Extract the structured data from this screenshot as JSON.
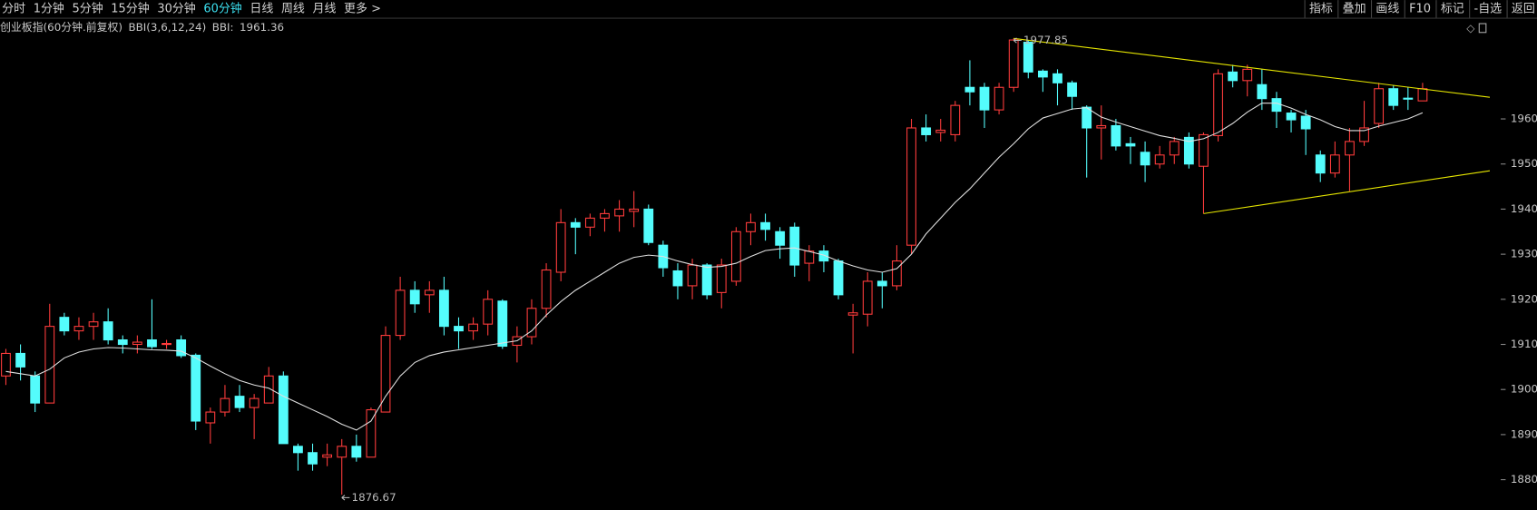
{
  "toolbar": {
    "periods": [
      "分时",
      "1分钟",
      "5分钟",
      "15分钟",
      "30分钟",
      "60分钟",
      "日线",
      "周线",
      "月线",
      "更多 >"
    ],
    "active": 5,
    "tools": [
      "指标",
      "叠加",
      "画线",
      "F10",
      "标记",
      "-自选",
      "返回"
    ]
  },
  "chart_data": {
    "type": "candlestick",
    "title": "创业板指(60分钟.前复权)",
    "indicator": "BBI(3,6,12,24)",
    "indicator_label": "BBI:",
    "open": [
      1903,
      1908,
      1903,
      1897,
      1916,
      1913,
      1914,
      1915,
      1911,
      1910,
      1911,
      1910,
      1911,
      1907.6,
      1892.6,
      1895,
      1898.5,
      1896,
      1897,
      1903,
      1887.4,
      1886,
      1885,
      1885,
      1887.4,
      1885,
      1895,
      1912,
      1922,
      1921,
      1922,
      1914,
      1913,
      1914.5,
      1919.6,
      1909.8,
      1911.7,
      1918,
      1926,
      1937,
      1936,
      1938,
      1938.5,
      1939.5,
      1940,
      1932,
      1926.3,
      1923,
      1927.6,
      1921.5,
      1924,
      1935,
      1937,
      1935,
      1936,
      1928,
      1930.7,
      1928.5,
      1916.5,
      1916.7,
      1924,
      1923,
      1932,
      1958,
      1957,
      1956.5,
      1967,
      1967,
      1962,
      1967,
      1977,
      1970.6,
      1970,
      1968,
      1962.6,
      1958,
      1958.5,
      1954.5,
      1952.6,
      1950,
      1952,
      1955.9,
      1949.5,
      1956.3,
      1970.4,
      1968.5,
      1967.6,
      1964.5,
      1961.3,
      1960.6,
      1952,
      1948,
      1952,
      1955,
      1959,
      1966.7,
      1964.6,
      1964
    ],
    "high": [
      1909,
      1910,
      1904,
      1919,
      1917,
      1916,
      1917,
      1918,
      1912,
      1912,
      1920,
      1911,
      1912,
      1908,
      1896,
      1901,
      1901,
      1899,
      1905,
      1904,
      1888,
      1888,
      1888,
      1889,
      1890,
      1896,
      1914,
      1925,
      1924,
      1924,
      1925,
      1916,
      1916,
      1922,
      1920,
      1914,
      1920,
      1928,
      1940,
      1938,
      1939,
      1940,
      1942,
      1944,
      1941,
      1933,
      1928,
      1929,
      1928,
      1929,
      1936,
      1939,
      1939,
      1936,
      1937,
      1932,
      1932,
      1929,
      1919,
      1926,
      1926,
      1932,
      1960,
      1961,
      1960,
      1964,
      1973,
      1968,
      1968,
      1977.85,
      1977.5,
      1971,
      1971,
      1968.5,
      1963,
      1963,
      1960,
      1956,
      1955,
      1954,
      1956,
      1957,
      1957,
      1971,
      1972,
      1972,
      1971,
      1966,
      1962,
      1962,
      1953,
      1955,
      1958,
      1964,
      1968,
      1967.5,
      1967,
      1968
    ],
    "low": [
      1901,
      1902,
      1895,
      1897,
      1912,
      1911,
      1911,
      1910,
      1908,
      1908,
      1909,
      1909,
      1907,
      1891,
      1888,
      1894,
      1895,
      1889,
      1897,
      1888,
      1882,
      1882,
      1883,
      1876.67,
      1884,
      1885,
      1895,
      1911,
      1917,
      1917,
      1912,
      1909,
      1911,
      1912,
      1909,
      1906,
      1910,
      1916,
      1924,
      1930,
      1934,
      1935,
      1935,
      1936,
      1932,
      1925,
      1920,
      1920,
      1920,
      1918,
      1923,
      1932,
      1933,
      1929,
      1925,
      1924,
      1926,
      1920,
      1908,
      1914,
      1918,
      1922,
      1930,
      1955,
      1955,
      1955,
      1963,
      1958,
      1961,
      1966,
      1969,
      1966,
      1963,
      1962,
      1947,
      1951,
      1953,
      1950,
      1946,
      1949,
      1950,
      1949,
      1939,
      1955,
      1967,
      1965,
      1962,
      1958,
      1957,
      1952,
      1946,
      1947,
      1944,
      1954,
      1958,
      1962,
      1962,
      1964
    ],
    "close": [
      1908,
      1905,
      1897,
      1914,
      1913,
      1914,
      1915,
      1911,
      1910,
      1910.5,
      1909.5,
      1910.2,
      1907.5,
      1893,
      1895,
      1898,
      1896,
      1898,
      1903,
      1888,
      1886,
      1883.5,
      1885.5,
      1887.4,
      1885,
      1895.5,
      1912,
      1922,
      1919,
      1922,
      1914,
      1913,
      1914.5,
      1920,
      1909.6,
      1911.7,
      1918,
      1926.5,
      1937,
      1936,
      1938,
      1939,
      1940,
      1940,
      1932.6,
      1927,
      1923,
      1927.6,
      1921,
      1927.6,
      1935,
      1937,
      1935.5,
      1932,
      1927.6,
      1930.7,
      1928.5,
      1921,
      1917,
      1924,
      1923,
      1928.5,
      1958,
      1956.5,
      1957.5,
      1963,
      1966,
      1962,
      1967,
      1977.5,
      1970.4,
      1969.3,
      1968,
      1965,
      1958,
      1958.5,
      1954,
      1954,
      1949.8,
      1952,
      1955,
      1950,
      1956.5,
      1970,
      1968.5,
      1971,
      1964.5,
      1961.7,
      1959.8,
      1957.8,
      1948,
      1952,
      1955,
      1958,
      1966.7,
      1963,
      1964.4,
      1966.7
    ],
    "up_color": "#ff3c3c",
    "down_color": "#54fcfc",
    "bbi": {
      "color": "#e0e0e0",
      "values": [
        1904,
        1903.5,
        1903,
        1904.5,
        1907,
        1908.3,
        1909,
        1909.3,
        1909.2,
        1909,
        1908.8,
        1908.7,
        1908.5,
        1907,
        1905.2,
        1903.5,
        1902,
        1901,
        1900.3,
        1898.5,
        1897,
        1895.5,
        1894,
        1892.3,
        1891,
        1893,
        1898.5,
        1903,
        1906,
        1907.5,
        1908.3,
        1908.8,
        1909.3,
        1909.8,
        1910.3,
        1910.8,
        1913,
        1916.5,
        1919.5,
        1922,
        1924,
        1926,
        1928,
        1929.3,
        1929.8,
        1929.5,
        1928.5,
        1927.7,
        1927.1,
        1927.3,
        1928,
        1929.5,
        1930.8,
        1931.2,
        1931.4,
        1930.6,
        1929.8,
        1928.5,
        1927.4,
        1926.5,
        1926,
        1926.8,
        1930,
        1934.5,
        1938,
        1941.5,
        1944.5,
        1948,
        1951.5,
        1954.5,
        1957.8,
        1960.2,
        1961.2,
        1962.2,
        1962.5,
        1960.4,
        1959.3,
        1958.3,
        1957.3,
        1956.3,
        1955.7,
        1955,
        1955.6,
        1957,
        1959,
        1961.5,
        1963.5,
        1963.5,
        1962.4,
        1961,
        1959.8,
        1958.3,
        1957.4,
        1957.4,
        1958.4,
        1959.2,
        1960,
        1961.36
      ]
    },
    "ylim": [
      1873.3,
      1982
    ],
    "yticks": [
      1880,
      1890,
      1900,
      1910,
      1920,
      1930,
      1940,
      1950,
      1960
    ],
    "annotations": [
      {
        "index": 23,
        "value": 1876.67
      },
      {
        "index": 69,
        "value": 1977.85
      }
    ],
    "trendline_color": "#e6e600",
    "trendlines": [
      {
        "x": [
          69,
          101.6
        ],
        "y": [
          1977.85,
          1964.8
        ]
      },
      {
        "x": [
          82,
          101.6
        ],
        "y": [
          1939,
          1948.5
        ]
      }
    ]
  }
}
